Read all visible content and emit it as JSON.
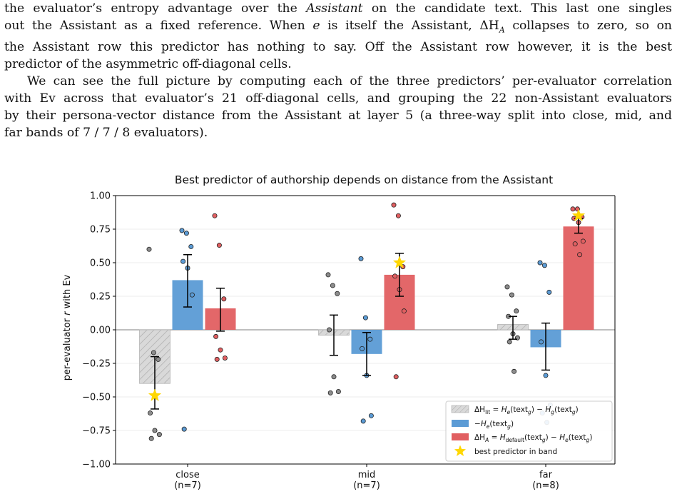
{
  "paragraphs": [
    {
      "indent": false,
      "lines": [
        "the evaluator’s entropy advantage over the Assistant on the candidate text. This last one singles",
        "out the Assistant as a fixed reference. When e is itself the Assistant, ΔH_A collapses to zero, so on",
        "the Assistant row this predictor has nothing to say. Off the Assistant row however, it is the best",
        "predictor of the asymmetric off-diagonal cells."
      ]
    },
    {
      "indent": true,
      "lines": [
        "We can see the full picture by computing each of the three predictors’ per-evaluator correlation",
        "with Ev across that evaluator’s 21 off-diagonal cells, and grouping the 22 non-Assistant evaluators",
        "by their persona-vector distance from the Assistant at layer 5 (a three-way split into close, mid, and",
        "far bands of 7 / 7 / 8 evaluators)."
      ]
    }
  ],
  "chart_data": {
    "type": "bar",
    "title": "Best predictor of authorship depends on distance from the Assistant",
    "ylabel": "per-evaluator r with Ev",
    "xlabel": "",
    "ylim": [
      -1.0,
      1.0
    ],
    "yticks": [
      1.0,
      0.75,
      0.5,
      0.25,
      0.0,
      -0.25,
      -0.5,
      -0.75,
      -1.0
    ],
    "ytick_labels": [
      "1.00",
      "0.75",
      "0.50",
      "0.25",
      "0.00",
      "−0.25",
      "−0.50",
      "−0.75",
      "−1.00"
    ],
    "grid": true,
    "legend_position": "lower-right",
    "categories": [
      {
        "name": "close",
        "n": "(n=7)"
      },
      {
        "name": "mid",
        "n": "(n=7)"
      },
      {
        "name": "far",
        "n": "(n=8)"
      }
    ],
    "series": [
      {
        "key": "lit",
        "legend": "ΔH_lit = H_e(text_g) − H_g(text_g)",
        "color": "#d3d3d3",
        "hatch": true,
        "values": [
          -0.4,
          -0.04,
          0.04
        ],
        "err": [
          [
            -0.59,
            -0.2
          ],
          [
            -0.19,
            0.11
          ],
          [
            -0.07,
            0.1
          ]
        ],
        "points": [
          [
            0.6,
            -0.17,
            -0.22,
            -0.62,
            -0.75,
            -0.78,
            -0.81
          ],
          [
            0.41,
            0.33,
            0.27,
            0.0,
            -0.35,
            -0.46,
            -0.47
          ],
          [
            0.32,
            0.26,
            0.14,
            0.1,
            -0.03,
            -0.06,
            -0.09,
            -0.31
          ]
        ]
      },
      {
        "key": "neg_he",
        "legend": "−H_e(text_g)",
        "color": "#5b9bd5",
        "hatch": false,
        "values": [
          0.37,
          -0.18,
          -0.13
        ],
        "err": [
          [
            0.17,
            0.56
          ],
          [
            -0.34,
            -0.02
          ],
          [
            -0.3,
            0.05
          ]
        ],
        "points": [
          [
            0.74,
            0.72,
            0.62,
            0.51,
            0.46,
            0.26,
            -0.74
          ],
          [
            0.53,
            0.09,
            -0.07,
            -0.14,
            -0.34,
            -0.64,
            -0.68
          ],
          [
            0.5,
            0.48,
            0.28,
            -0.09,
            -0.34,
            -0.56,
            -0.62,
            -0.69
          ]
        ]
      },
      {
        "key": "dha",
        "legend": "ΔH_A = H_default(text_g) − H_e(text_g)",
        "color": "#e15f61",
        "hatch": false,
        "values": [
          0.16,
          0.41,
          0.77
        ],
        "err": [
          [
            -0.01,
            0.31
          ],
          [
            0.25,
            0.57
          ],
          [
            0.72,
            0.83
          ]
        ],
        "points": [
          [
            0.85,
            0.63,
            0.23,
            -0.05,
            -0.15,
            -0.21,
            -0.22
          ],
          [
            0.93,
            0.85,
            0.47,
            0.4,
            0.3,
            0.14,
            -0.35
          ],
          [
            0.9,
            0.9,
            0.84,
            0.83,
            0.8,
            0.66,
            0.64,
            0.56
          ]
        ]
      }
    ],
    "best_predictor": [
      {
        "category": "close",
        "series": "lit",
        "value": -0.49
      },
      {
        "category": "mid",
        "series": "dha",
        "value": 0.5
      },
      {
        "category": "far",
        "series": "dha",
        "value": 0.85
      }
    ],
    "best_legend": "best predictor in band",
    "colors": {
      "star": "#ffd700",
      "axis": "#000000",
      "grid": "#e8e8e8",
      "zero_line": "#999999",
      "error_bar": "#000000"
    }
  }
}
